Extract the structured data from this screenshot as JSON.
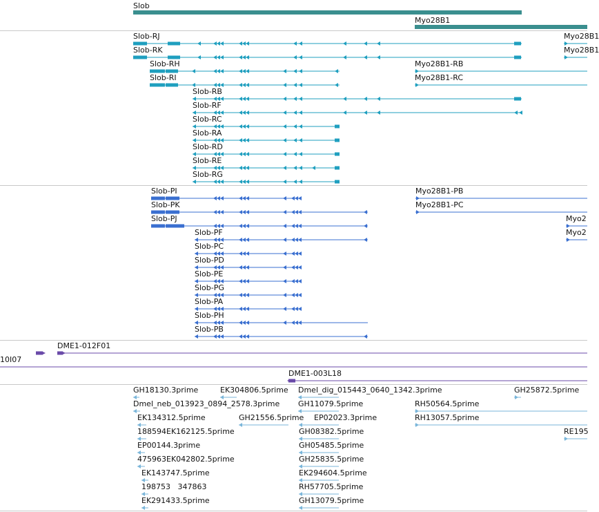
{
  "colors": {
    "gene": "#3a8f8f",
    "transcript": "#1f9fbf",
    "protein": "#3a6fd0",
    "clone": "#6a4aa8",
    "est": "#7ab6da",
    "separator": "#c8c8c8"
  },
  "gene_track": {
    "items": [
      {
        "label": "Slob"
      },
      {
        "label": "Myo28B1"
      }
    ]
  },
  "transcript_track": {
    "items": [
      {
        "label": "Slob-RJ"
      },
      {
        "label": "Myo28B1"
      },
      {
        "label": "Slob-RK"
      },
      {
        "label": "Myo28B1"
      },
      {
        "label": "Slob-RH"
      },
      {
        "label": "Myo28B1-RB"
      },
      {
        "label": "Slob-RI"
      },
      {
        "label": "Myo28B1-RC"
      },
      {
        "label": "Slob-RB"
      },
      {
        "label": "Slob-RF"
      },
      {
        "label": "Slob-RC"
      },
      {
        "label": "Slob-RA"
      },
      {
        "label": "Slob-RD"
      },
      {
        "label": "Slob-RE"
      },
      {
        "label": "Slob-RG"
      }
    ]
  },
  "protein_track": {
    "items": [
      {
        "label": "Slob-PI"
      },
      {
        "label": "Myo28B1-PB"
      },
      {
        "label": "Slob-PK"
      },
      {
        "label": "Myo28B1-PC"
      },
      {
        "label": "Slob-PJ"
      },
      {
        "label": "Myo2"
      },
      {
        "label": "Slob-PF"
      },
      {
        "label": "Myo2"
      },
      {
        "label": "Slob-PC"
      },
      {
        "label": "Slob-PD"
      },
      {
        "label": "Slob-PE"
      },
      {
        "label": "Slob-PG"
      },
      {
        "label": "Slob-PA"
      },
      {
        "label": "Slob-PH"
      },
      {
        "label": "Slob-PB"
      }
    ]
  },
  "clone_track": {
    "items": [
      {
        "label": "DME1-012F01"
      },
      {
        "label": "10I07"
      },
      {
        "label": "DME1-003L18"
      }
    ]
  },
  "est_track": {
    "items": [
      {
        "label": "GH18130.3prime"
      },
      {
        "label": "EK304806.5prime"
      },
      {
        "label": "Dmel_dig_015443_0640_1342.3prime"
      },
      {
        "label": "GH25872.5prime"
      },
      {
        "label": "Dmel_neb_013923_0894_2578.3prime"
      },
      {
        "label": "GH11079.5prime"
      },
      {
        "label": "RH50564.5prime"
      },
      {
        "label": "EK134312.5prime"
      },
      {
        "label": "GH21556.5prime"
      },
      {
        "label": "EP02023.3prime"
      },
      {
        "label": "RH13057.5prime"
      },
      {
        "label": "188594EK162125.5prime"
      },
      {
        "label": "GH08382.5prime"
      },
      {
        "label": "RE195"
      },
      {
        "label": "EP00144.3prime"
      },
      {
        "label": "GH05485.5prime"
      },
      {
        "label": "475963EK042802.5prime"
      },
      {
        "label": "GH25835.5prime"
      },
      {
        "label": "EK143747.5prime"
      },
      {
        "label": "EK294604.5prime"
      },
      {
        "label": "198753   347863"
      },
      {
        "label": "RH57705.5prime"
      },
      {
        "label": "EK291433.5prime"
      },
      {
        "label": "GH13079.5prime"
      }
    ]
  }
}
